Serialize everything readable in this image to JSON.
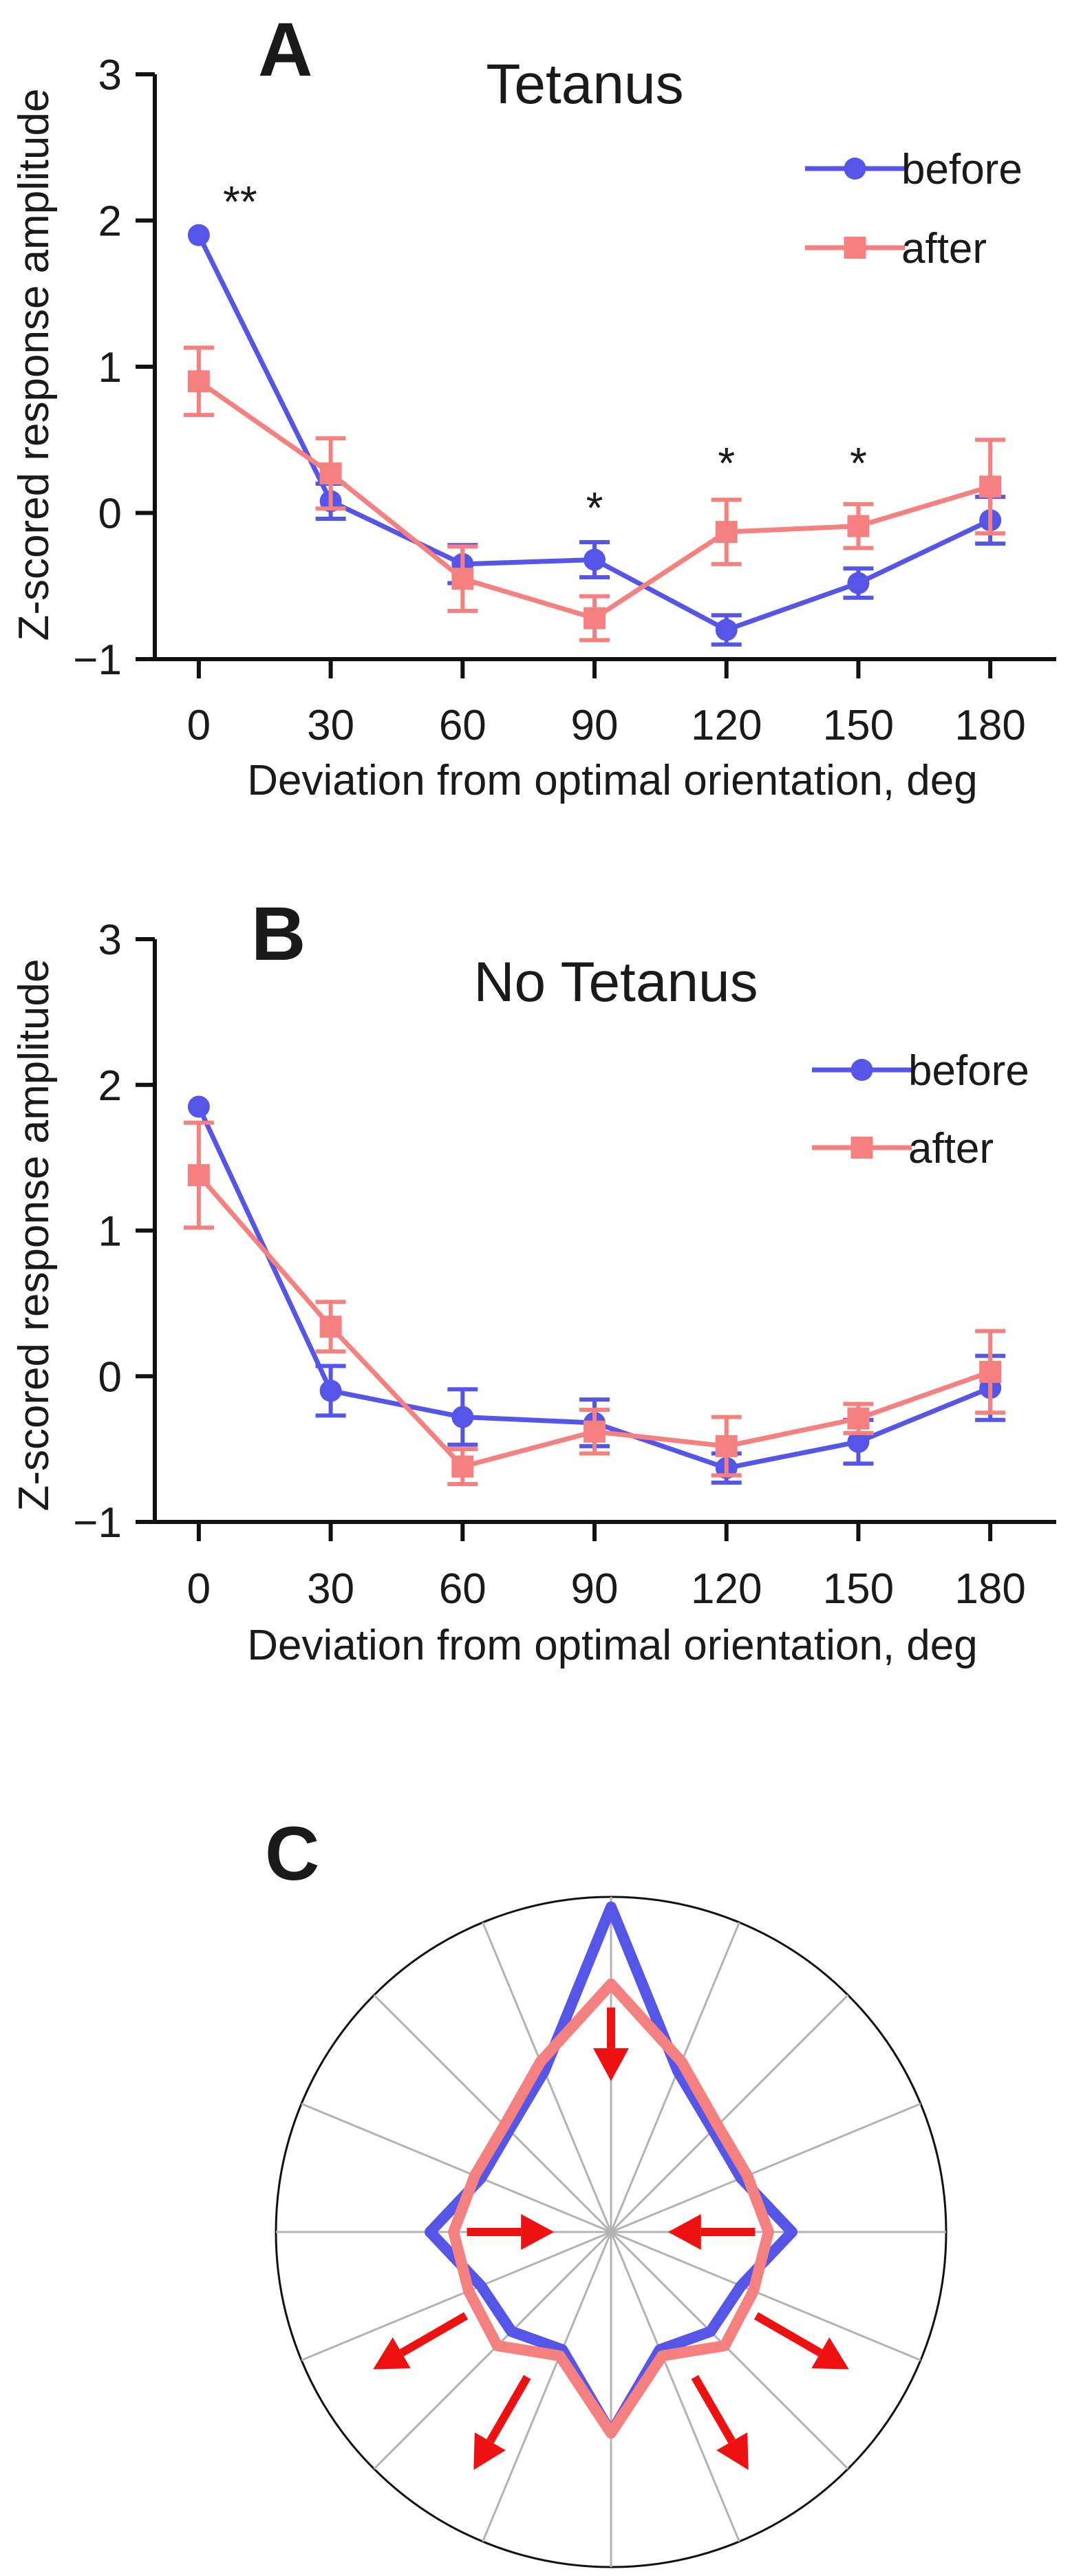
{
  "chart_data": [
    {
      "type": "line",
      "panel_letter": "A",
      "title": "Tetanus",
      "xlabel": "Deviation from optimal orientation, deg",
      "ylabel": "Z-scored response amplitude",
      "x": [
        0,
        30,
        60,
        90,
        120,
        150,
        180
      ],
      "x_tick_labels": [
        "0",
        "30",
        "60",
        "90",
        "120",
        "150",
        "180"
      ],
      "y_ticks": [
        3,
        2,
        1,
        0,
        -1
      ],
      "y_tick_labels": [
        "3",
        "2",
        "1",
        "0",
        "−1"
      ],
      "ylim": [
        -1,
        3
      ],
      "xlim": [
        -10,
        195
      ],
      "legend_position": "top-right",
      "series": [
        {
          "name": "before",
          "color": "#5555e8",
          "marker": "circle",
          "values": [
            1.9,
            0.08,
            -0.35,
            -0.32,
            -0.8,
            -0.48,
            -0.05
          ],
          "errors": [
            0.0,
            0.12,
            0.13,
            0.12,
            0.1,
            0.1,
            0.16
          ]
        },
        {
          "name": "after",
          "color": "#f58080",
          "marker": "square",
          "values": [
            0.9,
            0.27,
            -0.45,
            -0.72,
            -0.13,
            -0.09,
            0.18
          ],
          "errors": [
            0.23,
            0.24,
            0.22,
            0.15,
            0.22,
            0.15,
            0.32
          ]
        }
      ],
      "annotations": [
        {
          "text": "**",
          "x": 0
        },
        {
          "text": "*",
          "x": 90
        },
        {
          "text": "*",
          "x": 120
        },
        {
          "text": "*",
          "x": 150
        }
      ]
    },
    {
      "type": "line",
      "panel_letter": "B",
      "title": "No Tetanus",
      "xlabel": "Deviation from optimal orientation, deg",
      "ylabel": "Z-scored response amplitude",
      "x": [
        0,
        30,
        60,
        90,
        120,
        150,
        180
      ],
      "x_tick_labels": [
        "0",
        "30",
        "60",
        "90",
        "120",
        "150",
        "180"
      ],
      "y_ticks": [
        3,
        2,
        1,
        0,
        -1
      ],
      "y_tick_labels": [
        "3",
        "2",
        "1",
        "0",
        "−1"
      ],
      "ylim": [
        -1,
        3
      ],
      "xlim": [
        -10,
        195
      ],
      "legend_position": "top-right",
      "series": [
        {
          "name": "before",
          "color": "#5555e8",
          "marker": "circle",
          "values": [
            1.85,
            -0.1,
            -0.28,
            -0.32,
            -0.63,
            -0.45,
            -0.08
          ],
          "errors": [
            0.0,
            0.17,
            0.19,
            0.16,
            0.1,
            0.15,
            0.22
          ]
        },
        {
          "name": "after",
          "color": "#f58080",
          "marker": "square",
          "values": [
            1.38,
            0.34,
            -0.62,
            -0.38,
            -0.48,
            -0.29,
            0.03
          ],
          "errors": [
            0.36,
            0.17,
            0.12,
            0.15,
            0.2,
            0.1,
            0.28
          ]
        }
      ],
      "annotations": []
    },
    {
      "type": "polar",
      "panel_letter": "C",
      "spokes": 16,
      "angles_deg": [
        0,
        22.5,
        45,
        67.5,
        90,
        112.5,
        135,
        157.5,
        180,
        202.5,
        225,
        247.5,
        270,
        292.5,
        315,
        337.5
      ],
      "radial_range": [
        0,
        1
      ],
      "series": [
        {
          "name": "before",
          "color": "#5555e8",
          "values": [
            0.97,
            0.52,
            0.43,
            0.42,
            0.54,
            0.42,
            0.42,
            0.38,
            0.6,
            0.38,
            0.42,
            0.42,
            0.54,
            0.42,
            0.43,
            0.52
          ]
        },
        {
          "name": "after",
          "color": "#f58080",
          "values": [
            0.74,
            0.55,
            0.45,
            0.44,
            0.47,
            0.46,
            0.48,
            0.4,
            0.6,
            0.4,
            0.48,
            0.46,
            0.47,
            0.44,
            0.45,
            0.55
          ]
        }
      ],
      "arrows": [
        {
          "angle_deg": 0,
          "direction": "inward"
        },
        {
          "angle_deg": 90,
          "direction": "inward"
        },
        {
          "angle_deg": 270,
          "direction": "inward"
        },
        {
          "angle_deg": 120,
          "direction": "outward"
        },
        {
          "angle_deg": 150,
          "direction": "outward"
        },
        {
          "angle_deg": 210,
          "direction": "outward"
        },
        {
          "angle_deg": 240,
          "direction": "outward"
        }
      ],
      "arrow_color": "#ee1111"
    }
  ]
}
